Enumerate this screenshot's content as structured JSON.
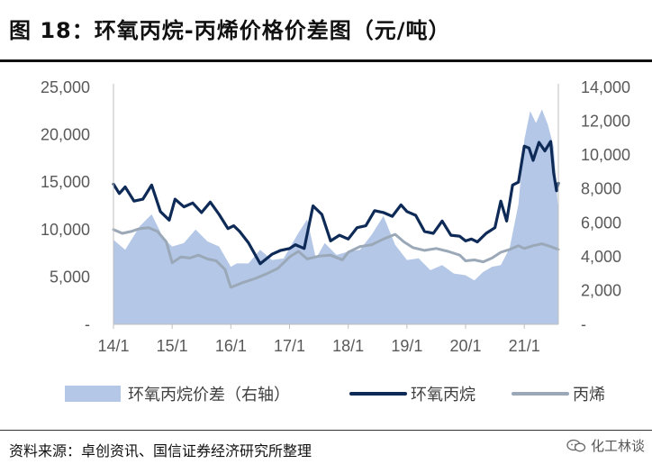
{
  "header": {
    "title": "图 18：环氧丙烷-丙烯价格价差图（元/吨）"
  },
  "footer": {
    "source": "资料来源：卓创资讯、国信证券经济研究所整理",
    "watermark": "化工林谈",
    "watermark_icon": "chat-bubbles-icon"
  },
  "chart_data": {
    "type": "line",
    "x_ticks": [
      "14/1",
      "15/1",
      "16/1",
      "17/1",
      "18/1",
      "19/1",
      "20/1",
      "21/1"
    ],
    "y_left": {
      "ticks": [
        "-",
        "5,000",
        "10,000",
        "15,000",
        "20,000",
        "25,000"
      ],
      "range": [
        0,
        25000
      ]
    },
    "y_right": {
      "ticks": [
        "-",
        "2,000",
        "4,000",
        "6,000",
        "8,000",
        "10,000",
        "12,000",
        "14,000"
      ],
      "range": [
        0,
        14000
      ]
    },
    "x_range": [
      2014.0,
      2021.58
    ],
    "legend_position": "bottom",
    "grid": false,
    "series": [
      {
        "name": "环氧丙烷价差（右轴）",
        "axis": "right",
        "kind": "area",
        "color": "#b4c7e7",
        "x": [
          2014.0,
          2014.2,
          2014.45,
          2014.65,
          2014.85,
          2015.0,
          2015.2,
          2015.4,
          2015.6,
          2015.8,
          2016.0,
          2016.1,
          2016.3,
          2016.5,
          2016.7,
          2016.9,
          2017.0,
          2017.15,
          2017.3,
          2017.45,
          2017.6,
          2017.8,
          2018.0,
          2018.2,
          2018.4,
          2018.6,
          2018.8,
          2019.0,
          2019.2,
          2019.4,
          2019.6,
          2019.8,
          2020.0,
          2020.15,
          2020.3,
          2020.45,
          2020.6,
          2020.75,
          2020.9,
          2021.0,
          2021.1,
          2021.2,
          2021.3,
          2021.4,
          2021.5,
          2021.58
        ],
        "values": [
          5000,
          4400,
          5800,
          6500,
          5100,
          4600,
          4800,
          5600,
          4900,
          4600,
          3400,
          3600,
          3600,
          4400,
          3800,
          3900,
          4500,
          5400,
          6200,
          3900,
          4800,
          4100,
          4300,
          4400,
          5300,
          6400,
          4700,
          3800,
          3900,
          3200,
          3500,
          3000,
          2900,
          2600,
          3100,
          3400,
          3500,
          4500,
          7100,
          10900,
          12600,
          11900,
          12700,
          11800,
          10500,
          6600
        ]
      },
      {
        "name": "环氧丙烷",
        "axis": "left",
        "kind": "line",
        "color": "#0e2a57",
        "x": [
          2014.0,
          2014.1,
          2014.2,
          2014.35,
          2014.5,
          2014.65,
          2014.8,
          2014.95,
          2015.05,
          2015.2,
          2015.35,
          2015.5,
          2015.65,
          2015.8,
          2015.95,
          2016.05,
          2016.15,
          2016.3,
          2016.5,
          2016.7,
          2016.85,
          2017.0,
          2017.1,
          2017.25,
          2017.4,
          2017.55,
          2017.7,
          2017.85,
          2018.0,
          2018.15,
          2018.3,
          2018.45,
          2018.6,
          2018.75,
          2018.9,
          2019.0,
          2019.15,
          2019.3,
          2019.45,
          2019.6,
          2019.75,
          2019.9,
          2020.0,
          2020.1,
          2020.2,
          2020.35,
          2020.5,
          2020.6,
          2020.7,
          2020.8,
          2020.9,
          2021.0,
          2021.08,
          2021.15,
          2021.25,
          2021.35,
          2021.45,
          2021.5,
          2021.55,
          2021.58
        ],
        "values": [
          14800,
          13800,
          14500,
          13000,
          13200,
          14700,
          11900,
          11000,
          13200,
          12400,
          12800,
          11800,
          12900,
          11600,
          10100,
          10400,
          9800,
          8600,
          6400,
          7400,
          7800,
          8000,
          8400,
          8000,
          12500,
          11600,
          8800,
          9400,
          9000,
          10200,
          10400,
          12000,
          11800,
          11400,
          12600,
          11900,
          11500,
          9800,
          9600,
          10900,
          9400,
          9300,
          8800,
          9000,
          8700,
          9600,
          10200,
          13000,
          10900,
          14700,
          15000,
          18800,
          18600,
          17300,
          19200,
          18300,
          19300,
          16000,
          14100,
          14900
        ]
      },
      {
        "name": "丙烯",
        "axis": "left",
        "kind": "line",
        "color": "#9aa8b8",
        "x": [
          2014.0,
          2014.15,
          2014.3,
          2014.45,
          2014.6,
          2014.75,
          2014.9,
          2015.0,
          2015.15,
          2015.3,
          2015.45,
          2015.6,
          2015.75,
          2015.9,
          2016.0,
          2016.2,
          2016.4,
          2016.6,
          2016.8,
          2017.0,
          2017.15,
          2017.3,
          2017.5,
          2017.7,
          2017.9,
          2018.0,
          2018.2,
          2018.4,
          2018.6,
          2018.8,
          2018.95,
          2019.1,
          2019.3,
          2019.5,
          2019.7,
          2019.9,
          2020.0,
          2020.15,
          2020.3,
          2020.45,
          2020.6,
          2020.75,
          2020.9,
          2021.0,
          2021.15,
          2021.3,
          2021.45,
          2021.58
        ],
        "values": [
          10000,
          9600,
          9800,
          10100,
          10200,
          9800,
          8700,
          6500,
          7100,
          7000,
          7300,
          6900,
          6700,
          5800,
          3900,
          4400,
          4800,
          5300,
          5900,
          7100,
          7700,
          6900,
          7200,
          7300,
          6800,
          7600,
          8200,
          8400,
          9000,
          9500,
          8700,
          8100,
          7800,
          8000,
          7700,
          7300,
          6700,
          6800,
          6600,
          7000,
          7600,
          7900,
          8300,
          8000,
          8300,
          8500,
          8200,
          7900
        ]
      }
    ]
  }
}
